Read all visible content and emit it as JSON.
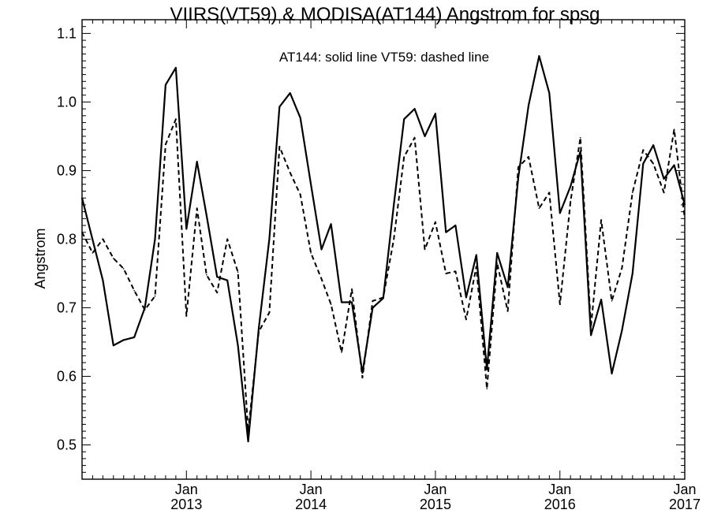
{
  "chart_data": {
    "type": "line",
    "title": "VIIRS(VT59) & MODISA(AT144)  Angstrom for spsg",
    "annotation": "AT144: solid line   VT59: dashed line",
    "ylabel": "Angstrom",
    "xlabel": "",
    "xlim": [
      "2012-03-01",
      "2017-01-01"
    ],
    "ylim": [
      0.45,
      1.12
    ],
    "y_ticks": [
      "0.5",
      "0.6",
      "0.7",
      "0.8",
      "0.9",
      "1.0",
      "1.1"
    ],
    "x_ticks": [
      {
        "month": "Jan",
        "year": "2013"
      },
      {
        "month": "Jan",
        "year": "2014"
      },
      {
        "month": "Jan",
        "year": "2015"
      },
      {
        "month": "Jan",
        "year": "2016"
      },
      {
        "month": "Jan",
        "year": "2017"
      }
    ],
    "series": [
      {
        "name": "AT144",
        "style": "solid",
        "points": [
          [
            "2012-03-01",
            0.86
          ],
          [
            "2012-05-01",
            0.74
          ],
          [
            "2012-06-01",
            0.645
          ],
          [
            "2012-07-01",
            0.653
          ],
          [
            "2012-08-01",
            0.657
          ],
          [
            "2012-09-01",
            0.7
          ],
          [
            "2012-10-01",
            0.8
          ],
          [
            "2012-11-01",
            1.025
          ],
          [
            "2012-12-01",
            1.05
          ],
          [
            "2013-01-01",
            0.815
          ],
          [
            "2013-02-01",
            0.913
          ],
          [
            "2013-03-01",
            0.835
          ],
          [
            "2013-04-01",
            0.745
          ],
          [
            "2013-05-01",
            0.74
          ],
          [
            "2013-06-01",
            0.645
          ],
          [
            "2013-07-01",
            0.505
          ],
          [
            "2013-08-01",
            0.67
          ],
          [
            "2013-09-01",
            0.8
          ],
          [
            "2013-10-01",
            0.993
          ],
          [
            "2013-11-01",
            1.013
          ],
          [
            "2013-12-01",
            0.977
          ],
          [
            "2014-01-01",
            0.88
          ],
          [
            "2014-02-01",
            0.785
          ],
          [
            "2014-03-01",
            0.822
          ],
          [
            "2014-04-01",
            0.708
          ],
          [
            "2014-05-01",
            0.708
          ],
          [
            "2014-06-01",
            0.605
          ],
          [
            "2014-07-01",
            0.7
          ],
          [
            "2014-08-01",
            0.714
          ],
          [
            "2014-09-01",
            0.85
          ],
          [
            "2014-10-01",
            0.975
          ],
          [
            "2014-11-01",
            0.99
          ],
          [
            "2014-12-01",
            0.95
          ],
          [
            "2015-01-01",
            0.983
          ],
          [
            "2015-02-01",
            0.81
          ],
          [
            "2015-03-01",
            0.82
          ],
          [
            "2015-04-01",
            0.715
          ],
          [
            "2015-05-01",
            0.777
          ],
          [
            "2015-06-01",
            0.61
          ],
          [
            "2015-07-01",
            0.78
          ],
          [
            "2015-08-01",
            0.73
          ],
          [
            "2015-09-01",
            0.89
          ],
          [
            "2015-10-01",
            0.995
          ],
          [
            "2015-11-01",
            1.067
          ],
          [
            "2015-12-01",
            1.013
          ],
          [
            "2016-01-01",
            0.838
          ],
          [
            "2016-02-01",
            0.877
          ],
          [
            "2016-03-01",
            0.928
          ],
          [
            "2016-04-01",
            0.66
          ],
          [
            "2016-05-01",
            0.712
          ],
          [
            "2016-06-01",
            0.604
          ],
          [
            "2016-07-01",
            0.667
          ],
          [
            "2016-08-01",
            0.75
          ],
          [
            "2016-09-01",
            0.91
          ],
          [
            "2016-10-01",
            0.937
          ],
          [
            "2016-11-01",
            0.888
          ],
          [
            "2016-12-01",
            0.908
          ],
          [
            "2017-01-01",
            0.85
          ]
        ]
      },
      {
        "name": "VT59",
        "style": "dashed",
        "points": [
          [
            "2012-03-01",
            0.81
          ],
          [
            "2012-04-01",
            0.78
          ],
          [
            "2012-05-01",
            0.8
          ],
          [
            "2012-06-01",
            0.772
          ],
          [
            "2012-07-01",
            0.757
          ],
          [
            "2012-08-01",
            0.725
          ],
          [
            "2012-09-01",
            0.697
          ],
          [
            "2012-10-01",
            0.717
          ],
          [
            "2012-11-01",
            0.938
          ],
          [
            "2012-12-01",
            0.975
          ],
          [
            "2013-01-01",
            0.688
          ],
          [
            "2013-02-01",
            0.845
          ],
          [
            "2013-03-01",
            0.748
          ],
          [
            "2013-04-01",
            0.722
          ],
          [
            "2013-05-01",
            0.8
          ],
          [
            "2013-06-01",
            0.752
          ],
          [
            "2013-07-01",
            0.52
          ],
          [
            "2013-08-01",
            0.665
          ],
          [
            "2013-09-01",
            0.693
          ],
          [
            "2013-10-01",
            0.935
          ],
          [
            "2013-11-01",
            0.897
          ],
          [
            "2013-12-01",
            0.865
          ],
          [
            "2014-01-01",
            0.78
          ],
          [
            "2014-02-01",
            0.742
          ],
          [
            "2014-03-01",
            0.705
          ],
          [
            "2014-04-01",
            0.635
          ],
          [
            "2014-05-01",
            0.727
          ],
          [
            "2014-06-01",
            0.598
          ],
          [
            "2014-07-01",
            0.71
          ],
          [
            "2014-08-01",
            0.715
          ],
          [
            "2014-09-01",
            0.8
          ],
          [
            "2014-10-01",
            0.92
          ],
          [
            "2014-11-01",
            0.948
          ],
          [
            "2014-12-01",
            0.785
          ],
          [
            "2015-01-01",
            0.825
          ],
          [
            "2015-02-01",
            0.75
          ],
          [
            "2015-03-01",
            0.753
          ],
          [
            "2015-04-01",
            0.683
          ],
          [
            "2015-05-01",
            0.76
          ],
          [
            "2015-06-01",
            0.582
          ],
          [
            "2015-07-01",
            0.765
          ],
          [
            "2015-08-01",
            0.695
          ],
          [
            "2015-09-01",
            0.905
          ],
          [
            "2015-10-01",
            0.92
          ],
          [
            "2015-11-01",
            0.845
          ],
          [
            "2015-12-01",
            0.868
          ],
          [
            "2016-01-01",
            0.705
          ],
          [
            "2016-02-01",
            0.855
          ],
          [
            "2016-03-01",
            0.948
          ],
          [
            "2016-04-01",
            0.672
          ],
          [
            "2016-05-01",
            0.828
          ],
          [
            "2016-06-01",
            0.71
          ],
          [
            "2016-07-01",
            0.758
          ],
          [
            "2016-08-01",
            0.868
          ],
          [
            "2016-09-01",
            0.93
          ],
          [
            "2016-10-01",
            0.91
          ],
          [
            "2016-11-01",
            0.868
          ],
          [
            "2016-12-01",
            0.96
          ],
          [
            "2017-01-01",
            0.83
          ]
        ]
      }
    ]
  }
}
